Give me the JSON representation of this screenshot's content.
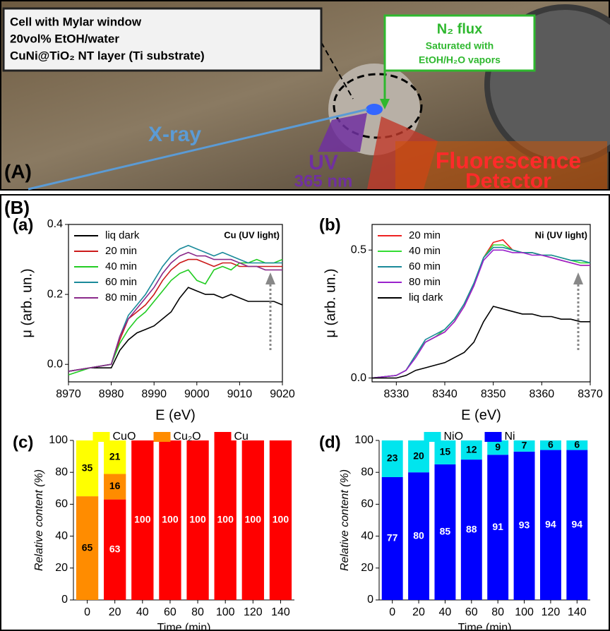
{
  "photo": {
    "panel_label": "(A)",
    "box_lines": [
      "Cell with Mylar window",
      "20vol% EtOH/water",
      "CuNi@TiO₂ NT layer (Ti substrate)"
    ],
    "flux_title": "N₂ flux",
    "flux_lines": [
      "Saturated with",
      "EtOH/H₂O vapors"
    ],
    "xray": "X-ray",
    "uv_lines": [
      "UV",
      "365 nm"
    ],
    "detector_lines": [
      "Fluorescence",
      "Detector"
    ]
  },
  "panel_b_label": "(B)",
  "chart_data": [
    {
      "type": "line",
      "panel_label": "(a)",
      "annotation": "Cu (UV light)",
      "xlabel": "E (eV)",
      "ylabel": "μ (arb. un.)",
      "legend": "upper left",
      "xlim": [
        8970,
        9020
      ],
      "xticks": [
        8970,
        8980,
        8990,
        9000,
        9010,
        9020
      ],
      "ylim": [
        -0.05,
        0.4
      ],
      "yticks": [
        {
          "value": 0,
          "label": "0.0"
        },
        0.2,
        0.4
      ],
      "x": [
        8970,
        8975,
        8980,
        8982,
        8984,
        8986,
        8988,
        8990,
        8992,
        8994,
        8996,
        8998,
        9000,
        9002,
        9004,
        9006,
        9008,
        9010,
        9012,
        9014,
        9016,
        9018,
        9020
      ],
      "series": [
        {
          "name": "liq dark",
          "color": "#000000",
          "values": [
            -0.02,
            -0.01,
            -0.01,
            0.04,
            0.07,
            0.09,
            0.1,
            0.11,
            0.13,
            0.15,
            0.19,
            0.22,
            0.21,
            0.2,
            0.2,
            0.19,
            0.2,
            0.19,
            0.18,
            0.18,
            0.18,
            0.18,
            0.17
          ]
        },
        {
          "name": "20 min",
          "color": "#cc1a1a",
          "values": [
            -0.02,
            -0.01,
            0.0,
            0.07,
            0.13,
            0.15,
            0.17,
            0.2,
            0.24,
            0.27,
            0.29,
            0.3,
            0.3,
            0.29,
            0.28,
            0.29,
            0.29,
            0.28,
            0.28,
            0.28,
            0.28,
            0.28,
            0.28
          ]
        },
        {
          "name": "40 min",
          "color": "#22cc22",
          "values": [
            -0.03,
            -0.01,
            0.0,
            0.06,
            0.1,
            0.13,
            0.15,
            0.18,
            0.21,
            0.24,
            0.26,
            0.27,
            0.24,
            0.23,
            0.27,
            0.28,
            0.27,
            0.29,
            0.29,
            0.3,
            0.29,
            0.29,
            0.3
          ]
        },
        {
          "name": "60 min",
          "color": "#1a8a9a",
          "values": [
            -0.02,
            -0.01,
            0.0,
            0.08,
            0.14,
            0.17,
            0.2,
            0.24,
            0.28,
            0.31,
            0.33,
            0.34,
            0.33,
            0.32,
            0.31,
            0.32,
            0.31,
            0.3,
            0.29,
            0.29,
            0.29,
            0.29,
            0.29
          ]
        },
        {
          "name": "80 min",
          "color": "#8a2a8a",
          "values": [
            -0.02,
            -0.01,
            0.0,
            0.08,
            0.13,
            0.16,
            0.19,
            0.22,
            0.26,
            0.29,
            0.31,
            0.32,
            0.31,
            0.31,
            0.3,
            0.3,
            0.3,
            0.29,
            0.28,
            0.28,
            0.27,
            0.27,
            0.27
          ]
        }
      ]
    },
    {
      "type": "line",
      "panel_label": "(b)",
      "annotation": "Ni (UV light)",
      "xlabel": "E (eV)",
      "ylabel": "μ (arb. un.)",
      "legend": "upper left",
      "xlim": [
        8325,
        8370
      ],
      "xticks": [
        8330,
        8340,
        8350,
        8360,
        8370
      ],
      "ylim": [
        -0.015,
        0.6
      ],
      "yticks": [
        {
          "value": 0,
          "label": "0.0"
        },
        0.5
      ],
      "x": [
        8325,
        8330,
        8332,
        8334,
        8336,
        8338,
        8340,
        8342,
        8344,
        8346,
        8348,
        8350,
        8352,
        8354,
        8356,
        8358,
        8360,
        8362,
        8364,
        8366,
        8368,
        8370
      ],
      "series": [
        {
          "name": "20 min",
          "color": "#ee2222",
          "values": [
            0.0,
            0.01,
            0.03,
            0.09,
            0.14,
            0.16,
            0.18,
            0.22,
            0.28,
            0.36,
            0.47,
            0.53,
            0.54,
            0.5,
            0.49,
            0.49,
            0.48,
            0.47,
            0.46,
            0.45,
            0.44,
            0.44
          ]
        },
        {
          "name": "40 min",
          "color": "#33dd33",
          "values": [
            0.0,
            0.01,
            0.03,
            0.09,
            0.14,
            0.16,
            0.19,
            0.23,
            0.29,
            0.37,
            0.47,
            0.52,
            0.52,
            0.5,
            0.49,
            0.49,
            0.48,
            0.48,
            0.47,
            0.46,
            0.45,
            0.45
          ]
        },
        {
          "name": "60 min",
          "color": "#1a8a9a",
          "values": [
            0.0,
            0.01,
            0.03,
            0.09,
            0.15,
            0.17,
            0.19,
            0.23,
            0.29,
            0.37,
            0.47,
            0.51,
            0.51,
            0.5,
            0.49,
            0.49,
            0.48,
            0.48,
            0.47,
            0.46,
            0.46,
            0.45
          ]
        },
        {
          "name": "80 min",
          "color": "#9a22cc",
          "values": [
            0.0,
            0.01,
            0.03,
            0.08,
            0.14,
            0.16,
            0.18,
            0.22,
            0.28,
            0.36,
            0.46,
            0.5,
            0.5,
            0.49,
            0.49,
            0.48,
            0.48,
            0.47,
            0.46,
            0.45,
            0.44,
            0.44
          ]
        },
        {
          "name": "liq dark",
          "color": "#000000",
          "values": [
            0.0,
            0.0,
            0.01,
            0.03,
            0.04,
            0.05,
            0.06,
            0.08,
            0.1,
            0.14,
            0.22,
            0.28,
            0.27,
            0.26,
            0.25,
            0.25,
            0.24,
            0.24,
            0.23,
            0.23,
            0.22,
            0.22
          ]
        }
      ]
    },
    {
      "type": "stacked_bar",
      "panel_label": "(c)",
      "xlabel": "Time (min)",
      "ylabel": "Relative content (%)",
      "legend": "upper center",
      "categories": [
        "0",
        "20",
        "40",
        "60",
        "80",
        "100",
        "120",
        "140"
      ],
      "ylim": [
        0,
        100
      ],
      "yticks": [
        0,
        20,
        40,
        60,
        80,
        100
      ],
      "series": [
        {
          "name": "CuO",
          "color": "#ffff00",
          "values": [
            35,
            21,
            0,
            0,
            0,
            0,
            0,
            0
          ]
        },
        {
          "name": "Cu₂O",
          "color": "#ff8c00",
          "values": [
            65,
            16,
            0,
            0,
            0,
            0,
            0,
            0
          ]
        },
        {
          "name": "Cu",
          "color": "#ff0000",
          "values": [
            0,
            63,
            100,
            100,
            100,
            100,
            100,
            100
          ]
        }
      ]
    },
    {
      "type": "stacked_bar",
      "panel_label": "(d)",
      "xlabel": "Time (min)",
      "ylabel": "Relative content (%)",
      "legend": "upper center",
      "categories": [
        "0",
        "20",
        "40",
        "60",
        "80",
        "100",
        "120",
        "140"
      ],
      "ylim": [
        0,
        100
      ],
      "yticks": [
        0,
        20,
        40,
        60,
        80,
        100
      ],
      "series": [
        {
          "name": "NiO",
          "color": "#00e5ee",
          "values": [
            23,
            20,
            15,
            12,
            9,
            7,
            6,
            6
          ]
        },
        {
          "name": "Ni",
          "color": "#0000ff",
          "values": [
            77,
            80,
            85,
            88,
            91,
            93,
            94,
            94
          ]
        }
      ]
    }
  ]
}
